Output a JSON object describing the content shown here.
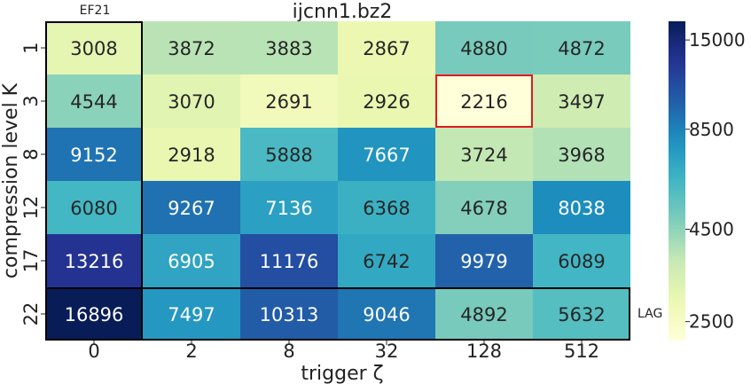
{
  "chart_data": {
    "type": "heatmap",
    "title": "ijcnn1.bz2",
    "xlabel": "trigger ζ",
    "ylabel": "compression level K",
    "x_categories": [
      "0",
      "2",
      "8",
      "32",
      "128",
      "512"
    ],
    "y_categories": [
      "1",
      "3",
      "8",
      "12",
      "17",
      "22"
    ],
    "values": [
      [
        3008,
        3872,
        3883,
        2867,
        4880,
        4872
      ],
      [
        4544,
        3070,
        2691,
        2926,
        2216,
        3497
      ],
      [
        9152,
        2918,
        5888,
        7667,
        3724,
        3968
      ],
      [
        6080,
        9267,
        7136,
        6368,
        4678,
        8038
      ],
      [
        13216,
        6905,
        11176,
        6742,
        9979,
        6089
      ],
      [
        16896,
        7497,
        10313,
        9046,
        4892,
        5632
      ]
    ],
    "colorscale": "YlGnBu",
    "colorbar": {
      "ticks": [
        2500,
        4500,
        8500,
        15000
      ],
      "labels": [
        "2500",
        "4500",
        "8500",
        "15000"
      ],
      "scale": "log"
    },
    "annotations": {
      "column_label": "EF21",
      "row_label": "LAG"
    },
    "highlight": {
      "row": 1,
      "col": 4,
      "color": "#e31a1c"
    },
    "boxes": {
      "first_column": true,
      "last_row": true
    },
    "grid": false
  }
}
